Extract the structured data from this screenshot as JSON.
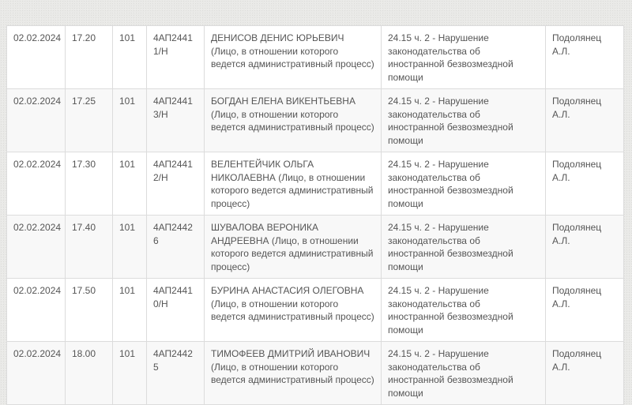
{
  "rows": [
    {
      "date": "02.02.2024",
      "time": "17.20",
      "room": "101",
      "case": "4АП24411/Н",
      "person": "ДЕНИСОВ ДЕНИС ЮРЬЕВИЧ (Лицо, в отношении которого ведется административный процесс)",
      "article": "24.15 ч. 2 - Нарушение законодательства об иностранной безвозмездной помощи",
      "judge": "Подолянец А.Л."
    },
    {
      "date": "02.02.2024",
      "time": "17.25",
      "room": "101",
      "case": "4АП24413/Н",
      "person": "БОГДАН ЕЛЕНА ВИКЕНТЬЕВНА (Лицо, в отношении которого ведется административный процесс)",
      "article": "24.15 ч. 2 - Нарушение законодательства об иностранной безвозмездной помощи",
      "judge": "Подолянец А.Л."
    },
    {
      "date": "02.02.2024",
      "time": "17.30",
      "room": "101",
      "case": "4АП24412/Н",
      "person": "ВЕЛЕНТЕЙЧИК ОЛЬГА НИКОЛАЕВНА (Лицо, в отношении которого ведется административный процесс)",
      "article": "24.15 ч. 2 - Нарушение законодательства об иностранной безвозмездной помощи",
      "judge": "Подолянец А.Л."
    },
    {
      "date": "02.02.2024",
      "time": "17.40",
      "room": "101",
      "case": "4АП24426",
      "person": "ШУВАЛОВА ВЕРОНИКА АНДРЕЕВНА (Лицо, в отношении которого ведется административный процесс)",
      "article": "24.15 ч. 2 - Нарушение законодательства об иностранной безвозмездной помощи",
      "judge": "Подолянец А.Л."
    },
    {
      "date": "02.02.2024",
      "time": "17.50",
      "room": "101",
      "case": "4АП24410/Н",
      "person": "БУРИНА АНАСТАСИЯ ОЛЕГОВНА (Лицо, в отношении которого ведется административный процесс)",
      "article": "24.15 ч. 2 - Нарушение законодательства об иностранной безвозмездной помощи",
      "judge": "Подолянец А.Л."
    },
    {
      "date": "02.02.2024",
      "time": "18.00",
      "room": "101",
      "case": "4АП24425",
      "person": "ТИМОФЕЕВ ДМИТРИЙ ИВАНОВИЧ (Лицо, в отношении которого ведется административный процесс)",
      "article": "24.15 ч. 2 - Нарушение законодательства об иностранной безвозмездной помощи",
      "judge": "Подолянец А.Л."
    }
  ]
}
